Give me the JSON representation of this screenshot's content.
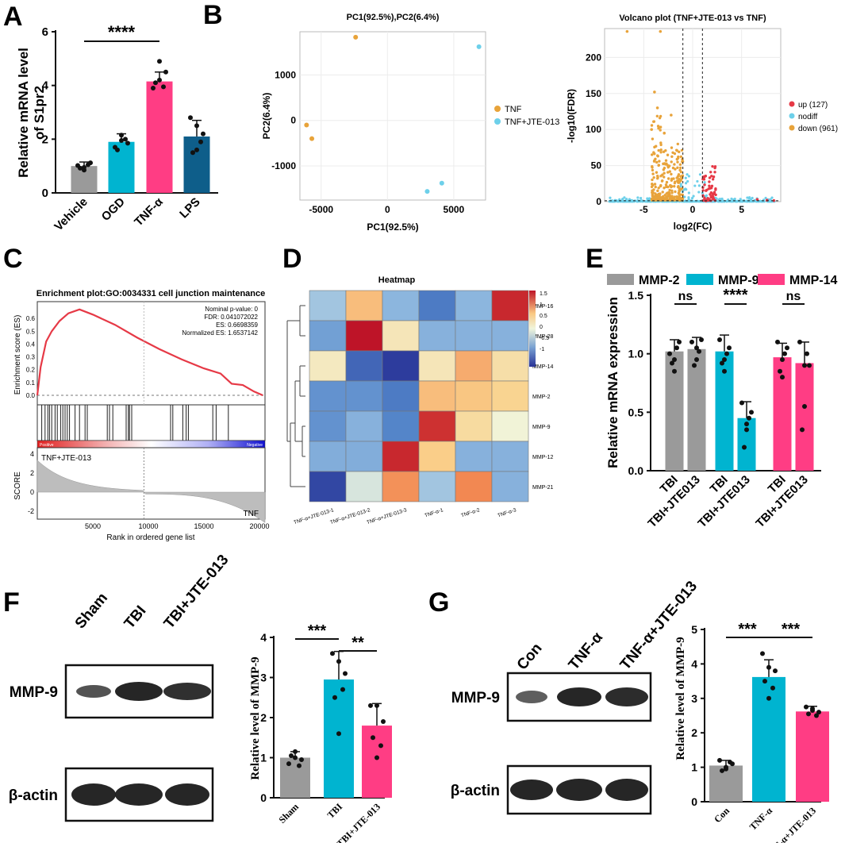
{
  "panels": {
    "A": "A",
    "B": "B",
    "C": "C",
    "D": "D",
    "E": "E",
    "F": "F",
    "G": "G"
  },
  "colors": {
    "gray": "#9a9a9a",
    "cyan": "#00b4d0",
    "pink": "#ff3d84",
    "navy": "#0e5e8a",
    "orange": "#e8a33a",
    "lightblue": "#6dd0ea",
    "red": "#e63946"
  },
  "chart_data": [
    {
      "id": "A",
      "type": "bar",
      "categories": [
        "Vehicle",
        "OGD",
        "TNF-α",
        "LPS"
      ],
      "values": [
        1.0,
        1.9,
        4.15,
        2.1
      ],
      "errors": [
        0.15,
        0.3,
        0.35,
        0.6
      ],
      "points": [
        [
          1.02,
          0.85,
          1.12,
          0.92,
          1.05,
          0.95
        ],
        [
          1.7,
          2.15,
          1.85,
          1.6,
          2.0,
          1.95
        ],
        [
          3.9,
          4.9,
          4.5,
          4.1,
          3.95,
          4.2
        ],
        [
          2.8,
          1.6,
          2.2,
          1.5,
          1.9,
          2.5
        ]
      ],
      "ylabel": "Relative mRNA level of S1pr2",
      "ylim": [
        0,
        6
      ],
      "yticks": [
        "0",
        "2",
        "4",
        "6"
      ],
      "significance": "****"
    },
    {
      "id": "B1",
      "type": "scatter",
      "title": "PC1(92.5%),PC2(6.4%)",
      "xlabel": "PC1(92.5%)",
      "ylabel": "PC2(6.4%)",
      "xlim": [
        -6600,
        7400
      ],
      "ylim": [
        -1750,
        1950
      ],
      "xticks": [
        "-5000",
        "0",
        "5000"
      ],
      "yticks": [
        "-1000",
        "0",
        "1000"
      ],
      "series": [
        {
          "name": "TNF",
          "points": [
            [
              -2400,
              1830
            ],
            [
              -6100,
              -100
            ],
            [
              -5700,
              -400
            ]
          ]
        },
        {
          "name": "TNF+JTE-013",
          "points": [
            [
              6900,
              1620
            ],
            [
              3000,
              -1560
            ],
            [
              4100,
              -1380
            ]
          ]
        }
      ]
    },
    {
      "id": "B2",
      "type": "scatter",
      "title": "Volcano plot (TNF+JTE-013 vs TNF)",
      "xlabel": "log2(FC)",
      "ylabel": "-log10(FDR)",
      "xlim": [
        -9,
        9
      ],
      "ylim": [
        0,
        240
      ],
      "xticks": [
        "-5",
        "0",
        "5"
      ],
      "yticks": [
        "0",
        "50",
        "100",
        "150",
        "200"
      ],
      "legend": [
        "up (127)",
        "nodiff",
        "down (961)"
      ]
    },
    {
      "id": "C",
      "type": "line",
      "title": "Enrichment plot:GO:0034331 cell junction maintenance",
      "stats": [
        "Nominal p-value: 0",
        "FDR: 0.041072022",
        "ES: 0.6698359",
        "Normalized ES: 1.6537142"
      ],
      "ylabel_top": "Enrichment score (ES)",
      "yticks_top": [
        "0.0",
        "0.1",
        "0.2",
        "0.3",
        "0.4",
        "0.5",
        "0.6"
      ],
      "ylabel_bottom": "SCORE",
      "yticks_bottom": [
        "4",
        "2",
        "0",
        "-2"
      ],
      "xlabel": "Rank in ordered gene list",
      "xticks": [
        "5000",
        "10000",
        "15000",
        "20000"
      ],
      "label_top": "TNF+JTE-013",
      "label_bottom": "TNF",
      "bar_left": "Positive",
      "bar_right": "Negative",
      "es_curve": [
        [
          0,
          0
        ],
        [
          300,
          0.22
        ],
        [
          800,
          0.42
        ],
        [
          1300,
          0.5
        ],
        [
          2000,
          0.58
        ],
        [
          2800,
          0.64
        ],
        [
          3800,
          0.67
        ],
        [
          5000,
          0.63
        ],
        [
          7000,
          0.55
        ],
        [
          9000,
          0.45
        ],
        [
          11000,
          0.36
        ],
        [
          13000,
          0.28
        ],
        [
          15000,
          0.21
        ],
        [
          16500,
          0.17
        ],
        [
          17500,
          0.09
        ],
        [
          18500,
          0.08
        ],
        [
          19500,
          0.03
        ],
        [
          20300,
          0
        ]
      ]
    },
    {
      "id": "D",
      "type": "heatmap",
      "title": "Heatmap",
      "rows": [
        "MMP-16",
        "MMP-28",
        "MMP-14",
        "MMP-2",
        "MMP-9",
        "MMP-12",
        "MMP-21"
      ],
      "cols": [
        "TNF-α+JTE-013-1",
        "TNF-α+JTE-013-2",
        "TNF-α+JTE-013-3",
        "TNF-α-1",
        "TNF-α-2",
        "TNF-α-3"
      ],
      "values": [
        [
          -0.2,
          0.8,
          -0.35,
          -1.0,
          -0.35,
          1.6
        ],
        [
          -0.6,
          1.7,
          0.4,
          -0.4,
          -0.4,
          -0.4
        ],
        [
          0.35,
          -1.2,
          -1.6,
          0.4,
          0.9,
          0.5
        ],
        [
          -0.75,
          -0.75,
          -1.0,
          0.8,
          0.75,
          0.65
        ],
        [
          -0.75,
          -0.4,
          -0.9,
          1.55,
          0.55,
          0.2
        ],
        [
          -0.45,
          -0.45,
          1.6,
          0.7,
          -0.4,
          -0.4
        ],
        [
          -1.5,
          0.05,
          1.05,
          -0.2,
          1.1,
          -0.4
        ]
      ],
      "scale_ticks": [
        "1.5",
        "1",
        "0.5",
        "0",
        "-0.5",
        "-1"
      ]
    },
    {
      "id": "E",
      "type": "bar",
      "legend": [
        "MMP-2",
        "MMP-9",
        "MMP-14"
      ],
      "categories": [
        "TBI",
        "TBI+JTE013",
        "TBI",
        "TBI+JTE013",
        "TBI",
        "TBI+JTE013"
      ],
      "values": [
        1.02,
        1.04,
        1.02,
        0.45,
        0.97,
        0.92
      ],
      "errors": [
        0.1,
        0.1,
        0.14,
        0.14,
        0.12,
        0.18
      ],
      "ylabel": "Relative mRNA expression",
      "ylim": [
        0,
        1.5
      ],
      "yticks": [
        "0.0",
        "0.5",
        "1.0",
        "1.5"
      ],
      "significance": [
        "ns",
        "****",
        "ns"
      ]
    },
    {
      "id": "F",
      "type": "bar",
      "categories": [
        "Sham",
        "TBI",
        "TBI+JTE-013"
      ],
      "values": [
        1.0,
        2.95,
        1.8
      ],
      "errors": [
        0.15,
        0.7,
        0.55
      ],
      "points": [
        [
          0.85,
          1.15,
          0.95,
          1.05,
          0.8,
          1.0
        ],
        [
          3.6,
          3.4,
          3.1,
          2.5,
          2.7,
          1.6
        ],
        [
          2.3,
          2.3,
          1.9,
          1.5,
          1.3,
          1.0
        ]
      ],
      "ylabel": "Relative level of MMP-9",
      "ylim": [
        0,
        4
      ],
      "yticks": [
        "0",
        "1",
        "2",
        "3",
        "4"
      ],
      "significance": [
        "***",
        "**"
      ]
    },
    {
      "id": "G",
      "type": "bar",
      "categories": [
        "Con",
        "TNF-α",
        "TNF-α+JTE-013"
      ],
      "values": [
        1.05,
        3.62,
        2.62
      ],
      "errors": [
        0.15,
        0.5,
        0.15
      ],
      "points": [
        [
          1.2,
          0.95,
          1.1,
          0.9,
          1.15,
          1.0
        ],
        [
          4.3,
          3.9,
          3.8,
          3.5,
          3.3,
          3.0
        ],
        [
          2.75,
          2.7,
          2.6,
          2.55,
          2.5,
          2.65
        ]
      ],
      "ylabel": "Relative level of MMP-9",
      "ylim": [
        0,
        5
      ],
      "yticks": [
        "0",
        "1",
        "2",
        "3",
        "4",
        "5"
      ],
      "significance": [
        "***",
        "***"
      ]
    }
  ],
  "blots": {
    "F": {
      "lanes": [
        "Sham",
        "TBI",
        "TBI+JTE-013"
      ],
      "bands": [
        "MMP-9",
        "β-actin"
      ]
    },
    "G": {
      "lanes": [
        "Con",
        "TNF-α",
        "TNF-α+JTE-013"
      ],
      "bands": [
        "MMP-9",
        "β-actin"
      ]
    }
  }
}
